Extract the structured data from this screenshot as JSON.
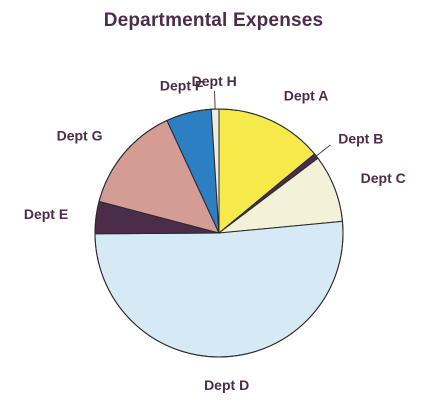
{
  "chart_data": {
    "type": "pie",
    "title": "Departmental Expenses",
    "start_angle_deg": 0,
    "direction": "clockwise",
    "slices": [
      {
        "label": "Dept A",
        "value": 14.0,
        "color": "#f5ea4a"
      },
      {
        "label": "Dept B",
        "value": 0.7,
        "color": "#4b2d4a"
      },
      {
        "label": "Dept C",
        "value": 8.8,
        "color": "#f3f1d8"
      },
      {
        "label": "Dept D",
        "value": 51.4,
        "color": "#d6eaf5"
      },
      {
        "label": "Dept E",
        "value": 4.2,
        "color": "#4b2d4a"
      },
      {
        "label": "Dept G",
        "value": 14.0,
        "color": "#d39c94"
      },
      {
        "label": "Dept F",
        "value": 5.9,
        "color": "#2d7fc4"
      },
      {
        "label": "Dept H",
        "value": 1.0,
        "color": "#efebe0"
      }
    ]
  }
}
